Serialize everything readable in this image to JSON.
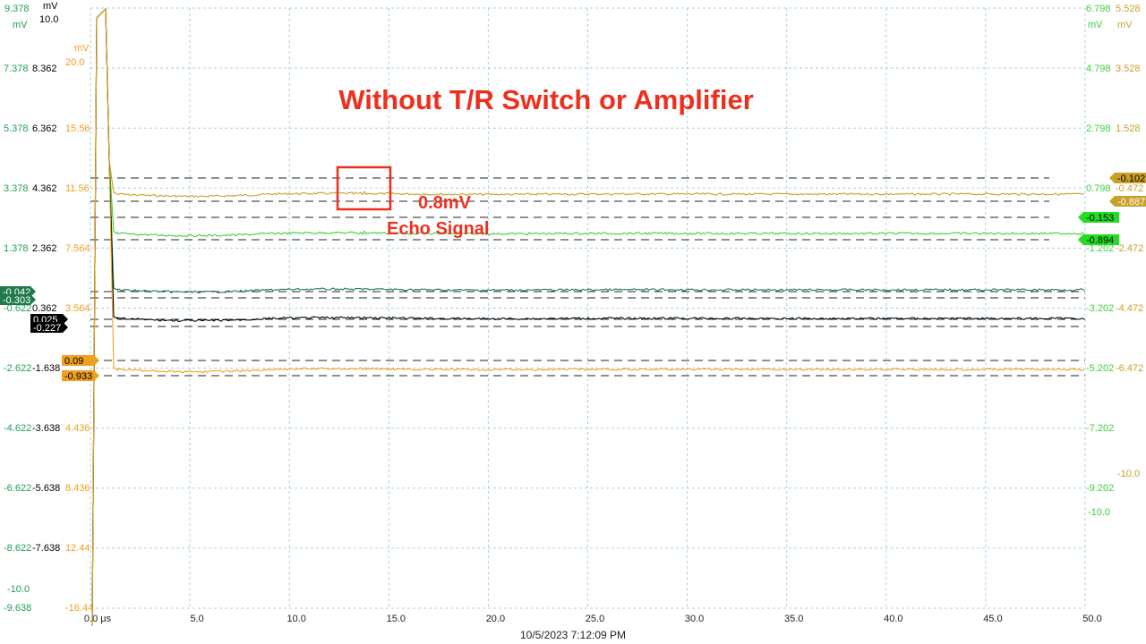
{
  "chart_data": {
    "type": "line",
    "title": "Without T/R Switch or Amplifier",
    "xlabel": "",
    "x_unit": "μs",
    "timestamp": "10/5/2023 7:12:09 PM",
    "x_ticks": [
      "0.0 μs",
      "5.0",
      "10.0",
      "15.0",
      "20.0",
      "25.0",
      "30.0",
      "35.0",
      "40.0",
      "45.0",
      "50.0"
    ],
    "xlim": [
      0,
      50
    ],
    "grid": true,
    "annotations": {
      "amplitude": "0.8mV",
      "echo": "Echo Signal"
    },
    "axes": {
      "green_a": {
        "unit": "mV",
        "color": "#1e9e55",
        "ticks": [
          "9.378",
          "7.378",
          "5.378",
          "3.378",
          "1.378",
          "-0.622",
          "-2.622",
          "-4.622",
          "-6.622",
          "-8.622",
          "-9.638"
        ],
        "extra": "-10.0"
      },
      "black": {
        "unit": "mV",
        "color": "#000000",
        "top_label": "10.0",
        "ticks": [
          "8.362",
          "6.362",
          "4.362",
          "2.362",
          "0.362",
          "-1.638",
          "-3.638",
          "-5.638",
          "-7.638"
        ]
      },
      "orange": {
        "unit": "mV",
        "color": "#f0a01e",
        "ticks": [
          "20.0",
          "15.56",
          "11.56",
          "7.564",
          "3.564",
          "4.436",
          "8.436",
          "12.44",
          "-16.44"
        ]
      },
      "right_green": {
        "unit": "mV",
        "color": "#3ecf3a",
        "ticks": [
          "6.798",
          "4.798",
          "2.798",
          "0.798",
          "-1.202",
          "-3.202",
          "-5.202",
          "-7.202",
          "-9.202"
        ],
        "extra": "-10.0"
      },
      "right_olive": {
        "unit": "mV",
        "color": "#c8a028",
        "ticks": [
          "5.528",
          "3.528",
          "1.528",
          "-0.472",
          "-2.472",
          "-4.472",
          "-6.472"
        ],
        "extra": "-10.0"
      }
    },
    "markers": {
      "olive_top": "-0.102",
      "olive_bottom": "-0.887",
      "green_top": "-0.153",
      "green_bottom": "-0.894",
      "teal_top": "-0.042",
      "teal_bottom": "-0.303",
      "black_top": "0.025",
      "black_bottom": "-0.227",
      "orange_top": "0.09",
      "orange_bottom": "-0.933"
    },
    "series": [
      {
        "color": "#c8a028",
        "baseline_mV": -0.47,
        "echo_us": 13.5,
        "echo_amp_mV": 0.8
      },
      {
        "color": "#3ecf3a",
        "baseline_mV": -0.52,
        "echo_us": 13.5,
        "echo_amp_mV": 0.8
      },
      {
        "color": "#1e7a4a",
        "baseline_mV": -0.17,
        "echo_us": 13.5,
        "echo_amp_mV": 0.3
      },
      {
        "color": "#000000",
        "baseline_mV": -0.1,
        "echo_us": 13.5,
        "echo_amp_mV": 0.2
      },
      {
        "color": "#f0a01e",
        "baseline_mV": -0.42,
        "echo_us": 13.5,
        "echo_amp_mV": 0.3
      }
    ]
  }
}
